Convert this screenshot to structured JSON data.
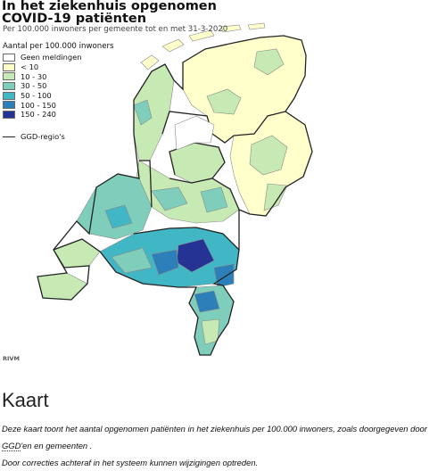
{
  "map": {
    "title": "In het ziekenhuis opgenomen COVID-19 patiënten",
    "subtitle": "Per 100.000 inwoners per gemeente tot en met 31-3-2020",
    "legend_title": "Aantal per 100.000 inwoners",
    "legend": [
      {
        "label": "Geen meldingen",
        "color": "#ffffff"
      },
      {
        "label": "< 10",
        "color": "#ffffcc"
      },
      {
        "label": "10 - 30",
        "color": "#c7e9b4"
      },
      {
        "label": "30 - 50",
        "color": "#7fcdbb"
      },
      {
        "label": "50 - 100",
        "color": "#41b6c4"
      },
      {
        "label": "100 - 150",
        "color": "#2c7fb8"
      },
      {
        "label": "150 - 240",
        "color": "#253494"
      }
    ],
    "region_legend_label": "GGD-regio's",
    "source": "RIVM"
  },
  "section": {
    "heading": "Kaart",
    "description_pre": "Deze kaart toont het aantal opgenomen patiënten in het ziekenhuis per 100.000 inwoners, zoals doorgegeven door ",
    "description_abbr": "GGD",
    "description_post": "'en en gemeenten .",
    "note": "Door correcties achteraf in het systeem kunnen wijzigingen optreden."
  }
}
